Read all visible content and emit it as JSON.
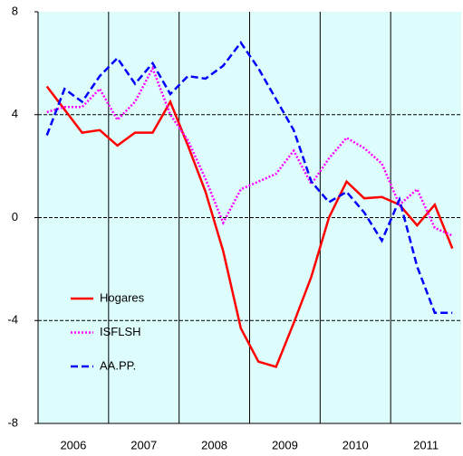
{
  "chart_data": {
    "type": "line",
    "categories": [
      "2006",
      null,
      null,
      null,
      "2007",
      null,
      null,
      null,
      "2008",
      null,
      null,
      null,
      "2009",
      null,
      null,
      null,
      "2010",
      null,
      null,
      null,
      "2011",
      null,
      null,
      null
    ],
    "series": [
      {
        "name": "Hogares",
        "color": "#ff0000",
        "dash": "solid",
        "values": [
          5.1,
          4.2,
          3.3,
          3.4,
          2.8,
          3.3,
          3.3,
          4.5,
          2.8,
          1.0,
          -1.3,
          -4.3,
          -5.6,
          -5.8,
          -4.1,
          -2.3,
          0,
          1.4,
          0.75,
          0.8,
          0.5,
          -0.3,
          0.5,
          -1.2
        ]
      },
      {
        "name": "ISFLSH",
        "color": "#ff00ff",
        "dash": "dotted",
        "values": [
          4.1,
          4.3,
          4.3,
          5.0,
          3.8,
          4.5,
          5.8,
          4.0,
          3.0,
          1.5,
          -0.2,
          1.1,
          1.4,
          1.7,
          2.6,
          1.3,
          2.3,
          3.1,
          2.7,
          2.1,
          0.5,
          1.1,
          -0.4,
          -0.7
        ]
      },
      {
        "name": "AA.PP.",
        "color": "#0000ff",
        "dash": "dashed",
        "values": [
          3.2,
          5.0,
          4.5,
          5.5,
          6.2,
          5.2,
          6.0,
          4.8,
          5.5,
          5.4,
          5.9,
          6.8,
          5.8,
          4.6,
          3.4,
          1.4,
          0.6,
          1.0,
          0.2,
          -0.9,
          0.7,
          -1.9,
          -3.7,
          -3.7
        ]
      }
    ],
    "ylim": [
      -8,
      8
    ],
    "yticks": [
      -8,
      -4,
      0,
      4,
      8
    ],
    "grid": true,
    "legend": "lower left",
    "background": "#ddfdfd"
  }
}
